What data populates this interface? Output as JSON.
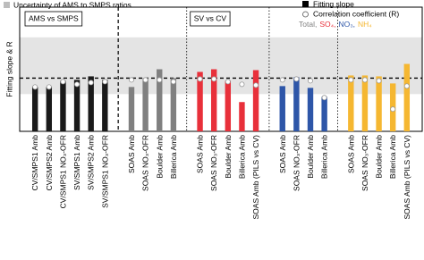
{
  "chart_data": {
    "type": "bar",
    "y_label": "Fitting slope & R",
    "ylim": [
      0.4,
      1.8
    ],
    "reference_line": 1,
    "band_label": "Uncertainty of AMS to SMPS ratios",
    "band_color": "#e4e4e4",
    "uncertainty_band": [
      0.82,
      1.46
    ],
    "panels": [
      "AMS vs SMPS",
      "SV vs CV"
    ],
    "species": [
      {
        "name": "Total,",
        "color": "#808080"
      },
      {
        "name": "SO₄,",
        "color": "#e8303a"
      },
      {
        "name": "NO₃,",
        "color": "#2e56a8"
      },
      {
        "name": "NH₄",
        "color": "#f5b731"
      }
    ],
    "categories": [
      "CV/SMPS1 Amb",
      "CV/SMPS2 Amb",
      "CV/SMPS1 NO₃-OFR",
      "SV/SMPS1 Amb",
      "SV/SMPS2 Amb",
      "SV/SMPS1 NO₃-OFR",
      "SOAS Amb",
      "SOAS NO₃-OFR",
      "Boulder Amb",
      "Billerica Amb",
      "SOAS Amb",
      "SOAS NO₃-OFR",
      "Boulder Amb",
      "Billerica Amb",
      "SOAS Amb (PILS vs CV)",
      "SOAS Amb",
      "SOAS NO₃-OFR",
      "Boulder Amb",
      "Billerica Amb",
      "SOAS Amb",
      "SOAS NO₃-OFR",
      "Boulder Amb",
      "Billerica Amb",
      "SOAS Amb (PILS vs CV)"
    ],
    "colors": [
      "#1a1a1a",
      "#1a1a1a",
      "#1a1a1a",
      "#1a1a1a",
      "#1a1a1a",
      "#1a1a1a",
      "#808080",
      "#808080",
      "#808080",
      "#808080",
      "#e8303a",
      "#e8303a",
      "#e8303a",
      "#e8303a",
      "#e8303a",
      "#2e56a8",
      "#2e56a8",
      "#2e56a8",
      "#2e56a8",
      "#f5b731",
      "#f5b731",
      "#f5b731",
      "#f5b731",
      "#f5b731"
    ],
    "label_colors": [
      "#000000",
      "#000000",
      "#000000",
      "#000000",
      "#000000",
      "#000000",
      "#000000",
      "#000000",
      "#000000",
      "#000000",
      "#000000",
      "#000000",
      "#000000",
      "#000000",
      "#2e56a8",
      "#000000",
      "#000000",
      "#000000",
      "#000000",
      "#000000",
      "#000000",
      "#000000",
      "#000000",
      "#2e56a8"
    ],
    "series": [
      {
        "name": "Fitting slope",
        "color": "#000000",
        "values": [
          0.9,
          0.9,
          0.97,
          0.98,
          1.02,
          0.98,
          0.9,
          1.0,
          1.1,
          1.0,
          1.07,
          1.1,
          0.97,
          0.73,
          1.09,
          0.91,
          1.01,
          0.89,
          0.79,
          1.03,
          1.03,
          1.02,
          0.94,
          1.16
        ]
      },
      {
        "name": "Correlation coefficient (R)",
        "color": "#ffffff",
        "values": [
          0.9,
          0.9,
          0.96,
          0.93,
          0.95,
          0.96,
          0.98,
          0.98,
          0.98,
          0.96,
          0.99,
          0.99,
          0.96,
          0.93,
          0.92,
          0.98,
          0.99,
          0.97,
          0.78,
          0.98,
          0.98,
          0.97,
          0.65,
          0.91
        ]
      }
    ]
  }
}
